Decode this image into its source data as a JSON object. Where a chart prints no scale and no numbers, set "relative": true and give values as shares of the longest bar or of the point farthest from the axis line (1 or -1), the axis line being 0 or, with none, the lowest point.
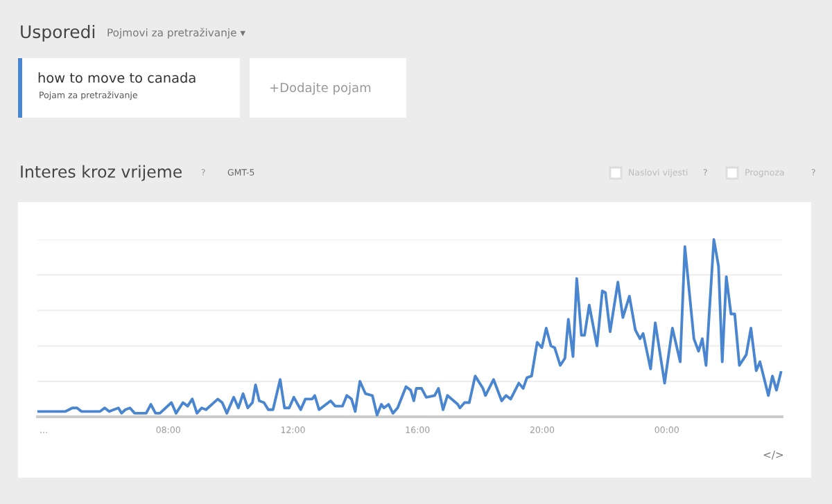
{
  "chart_data": {
    "type": "line",
    "title": "Interes kroz vrijeme",
    "subtitle": "GMT-5",
    "annotations": [
      "Usporedi",
      "Pojmovi za pretraživanje ▾",
      "Pojam za pretraživanje",
      "+Dodajte pojam",
      "?",
      "Naslovi vijesti",
      "?",
      "Prognoza",
      "?",
      "</>"
    ],
    "relative": true,
    "legend": "top left",
    "grid": "y",
    "marker": "none",
    "line_style": "solid",
    "xlim": [
      3.8,
      27.7
    ],
    "xticks": [
      {
        "value": 4,
        "label": "…"
      },
      {
        "value": 8,
        "label": "08:00"
      },
      {
        "value": 12,
        "label": "12:00"
      },
      {
        "value": 16,
        "label": "16:00"
      },
      {
        "value": 20,
        "label": "20:00"
      },
      {
        "value": 24,
        "label": "00:00"
      }
    ],
    "series": [
      {
        "name": "how to move to canada",
        "color": "#4a86cf",
        "x": [
          3.84,
          4.7,
          4.92,
          5.07,
          5.21,
          5.81,
          5.96,
          6.1,
          6.25,
          6.4,
          6.5,
          6.62,
          6.77,
          6.92,
          7.29,
          7.44,
          7.59,
          7.73,
          8.1,
          8.25,
          8.47,
          8.62,
          8.77,
          8.92,
          9.07,
          9.21,
          9.59,
          9.73,
          9.88,
          10.1,
          10.25,
          10.4,
          10.55,
          10.7,
          10.8,
          10.92,
          11.07,
          11.21,
          11.36,
          11.59,
          11.73,
          11.88,
          12.03,
          12.25,
          12.4,
          12.62,
          12.7,
          12.84,
          13.21,
          13.36,
          13.59,
          13.73,
          13.88,
          14.0,
          14.15,
          14.33,
          14.55,
          14.7,
          14.84,
          14.92,
          15.07,
          15.21,
          15.36,
          15.63,
          15.78,
          15.88,
          15.96,
          16.13,
          16.28,
          16.55,
          16.67,
          16.82,
          16.96,
          17.29,
          17.36,
          17.51,
          17.66,
          17.85,
          18.1,
          18.18,
          18.44,
          18.7,
          18.84,
          18.99,
          19.25,
          19.39,
          19.51,
          19.66,
          19.84,
          19.99,
          20.13,
          20.28,
          20.4,
          20.58,
          20.73,
          20.84,
          20.99,
          21.11,
          21.26,
          21.36,
          21.51,
          21.76,
          21.93,
          22.03,
          22.18,
          22.43,
          22.59,
          22.8,
          22.99,
          23.14,
          23.24,
          23.48,
          23.63,
          23.93,
          24.18,
          24.43,
          24.58,
          24.87,
          25.02,
          25.14,
          25.26,
          25.51,
          25.66,
          25.78,
          25.91,
          26.06,
          26.18,
          26.33,
          26.55,
          26.7,
          26.87,
          26.99,
          27.26,
          27.39,
          27.52,
          27.66
        ],
        "values": [
          0.03,
          0.03,
          0.05,
          0.05,
          0.03,
          0.03,
          0.05,
          0.03,
          0.04,
          0.05,
          0.02,
          0.04,
          0.05,
          0.02,
          0.02,
          0.07,
          0.02,
          0.02,
          0.08,
          0.02,
          0.08,
          0.06,
          0.1,
          0.02,
          0.05,
          0.04,
          0.1,
          0.08,
          0.02,
          0.11,
          0.05,
          0.13,
          0.05,
          0.08,
          0.18,
          0.09,
          0.08,
          0.04,
          0.04,
          0.21,
          0.05,
          0.05,
          0.11,
          0.04,
          0.1,
          0.1,
          0.12,
          0.04,
          0.09,
          0.06,
          0.06,
          0.12,
          0.1,
          0.03,
          0.2,
          0.13,
          0.12,
          0.01,
          0.07,
          0.05,
          0.07,
          0.02,
          0.05,
          0.17,
          0.15,
          0.09,
          0.16,
          0.16,
          0.11,
          0.12,
          0.16,
          0.04,
          0.12,
          0.07,
          0.05,
          0.08,
          0.08,
          0.23,
          0.16,
          0.12,
          0.21,
          0.09,
          0.12,
          0.1,
          0.19,
          0.16,
          0.22,
          0.23,
          0.42,
          0.39,
          0.5,
          0.4,
          0.39,
          0.29,
          0.33,
          0.55,
          0.34,
          0.78,
          0.46,
          0.46,
          0.63,
          0.4,
          0.71,
          0.7,
          0.48,
          0.76,
          0.56,
          0.68,
          0.49,
          0.44,
          0.47,
          0.27,
          0.53,
          0.19,
          0.5,
          0.31,
          0.96,
          0.44,
          0.37,
          0.44,
          0.29,
          1.0,
          0.85,
          0.31,
          0.79,
          0.58,
          0.58,
          0.29,
          0.35,
          0.5,
          0.26,
          0.31,
          0.12,
          0.23,
          0.15,
          0.25
        ]
      }
    ]
  }
}
